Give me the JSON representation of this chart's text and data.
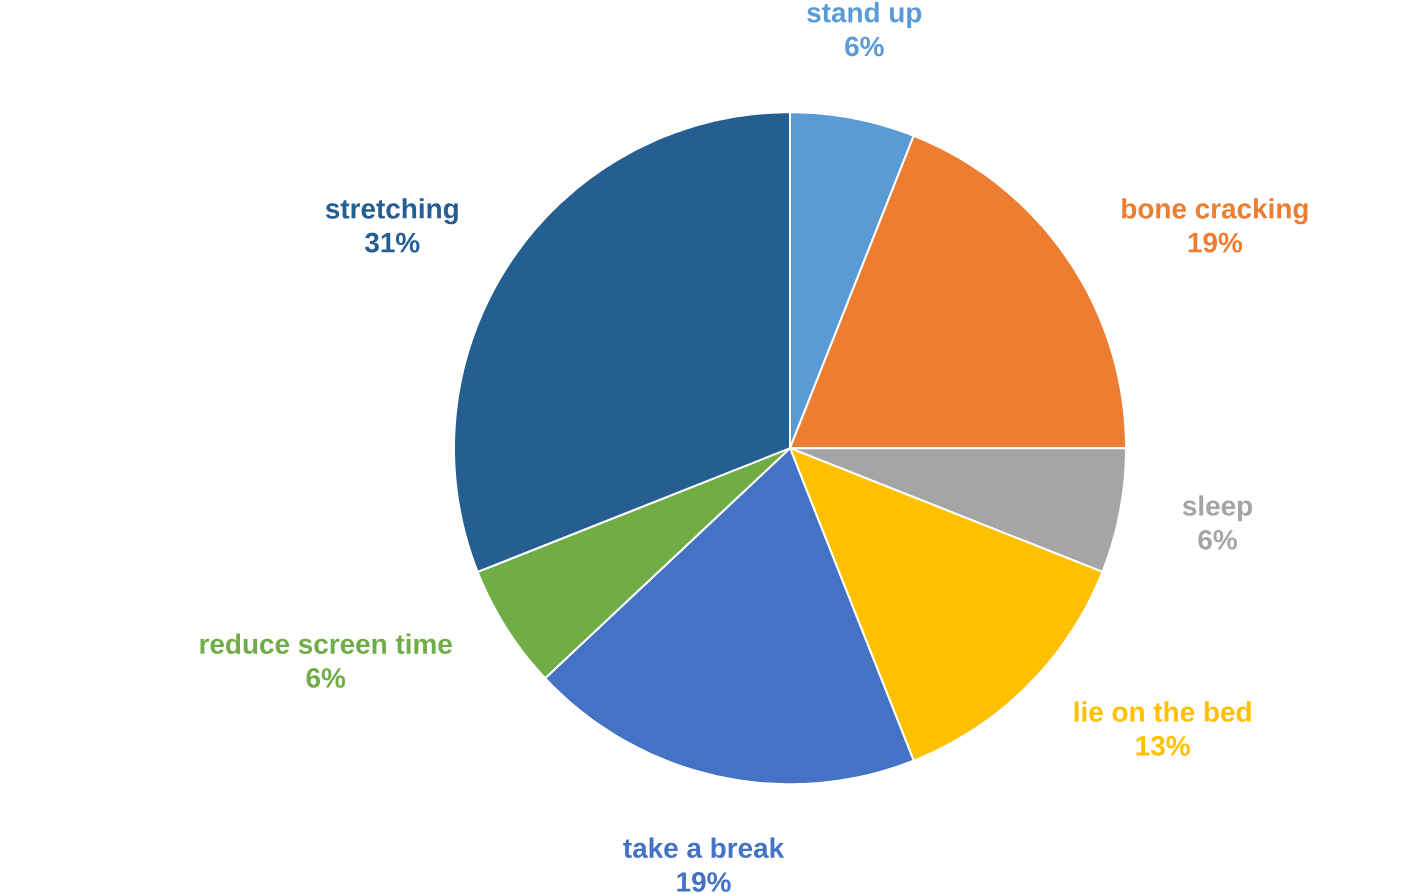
{
  "chart_data": {
    "type": "pie",
    "categories": [
      "stand up",
      "bone cracking",
      "sleep",
      "lie on the bed",
      "take a break",
      "reduce screen time",
      "stretching"
    ],
    "values": [
      6,
      19,
      6,
      13,
      19,
      6,
      31
    ],
    "value_labels": [
      "6%",
      "19%",
      "6%",
      "13%",
      "19%",
      "6%",
      "31%"
    ],
    "colors": [
      "#5b9bd5",
      "#ed7d31",
      "#a5a5a5",
      "#ffc000",
      "#4472c4",
      "#70ad47",
      "#255e91"
    ]
  }
}
